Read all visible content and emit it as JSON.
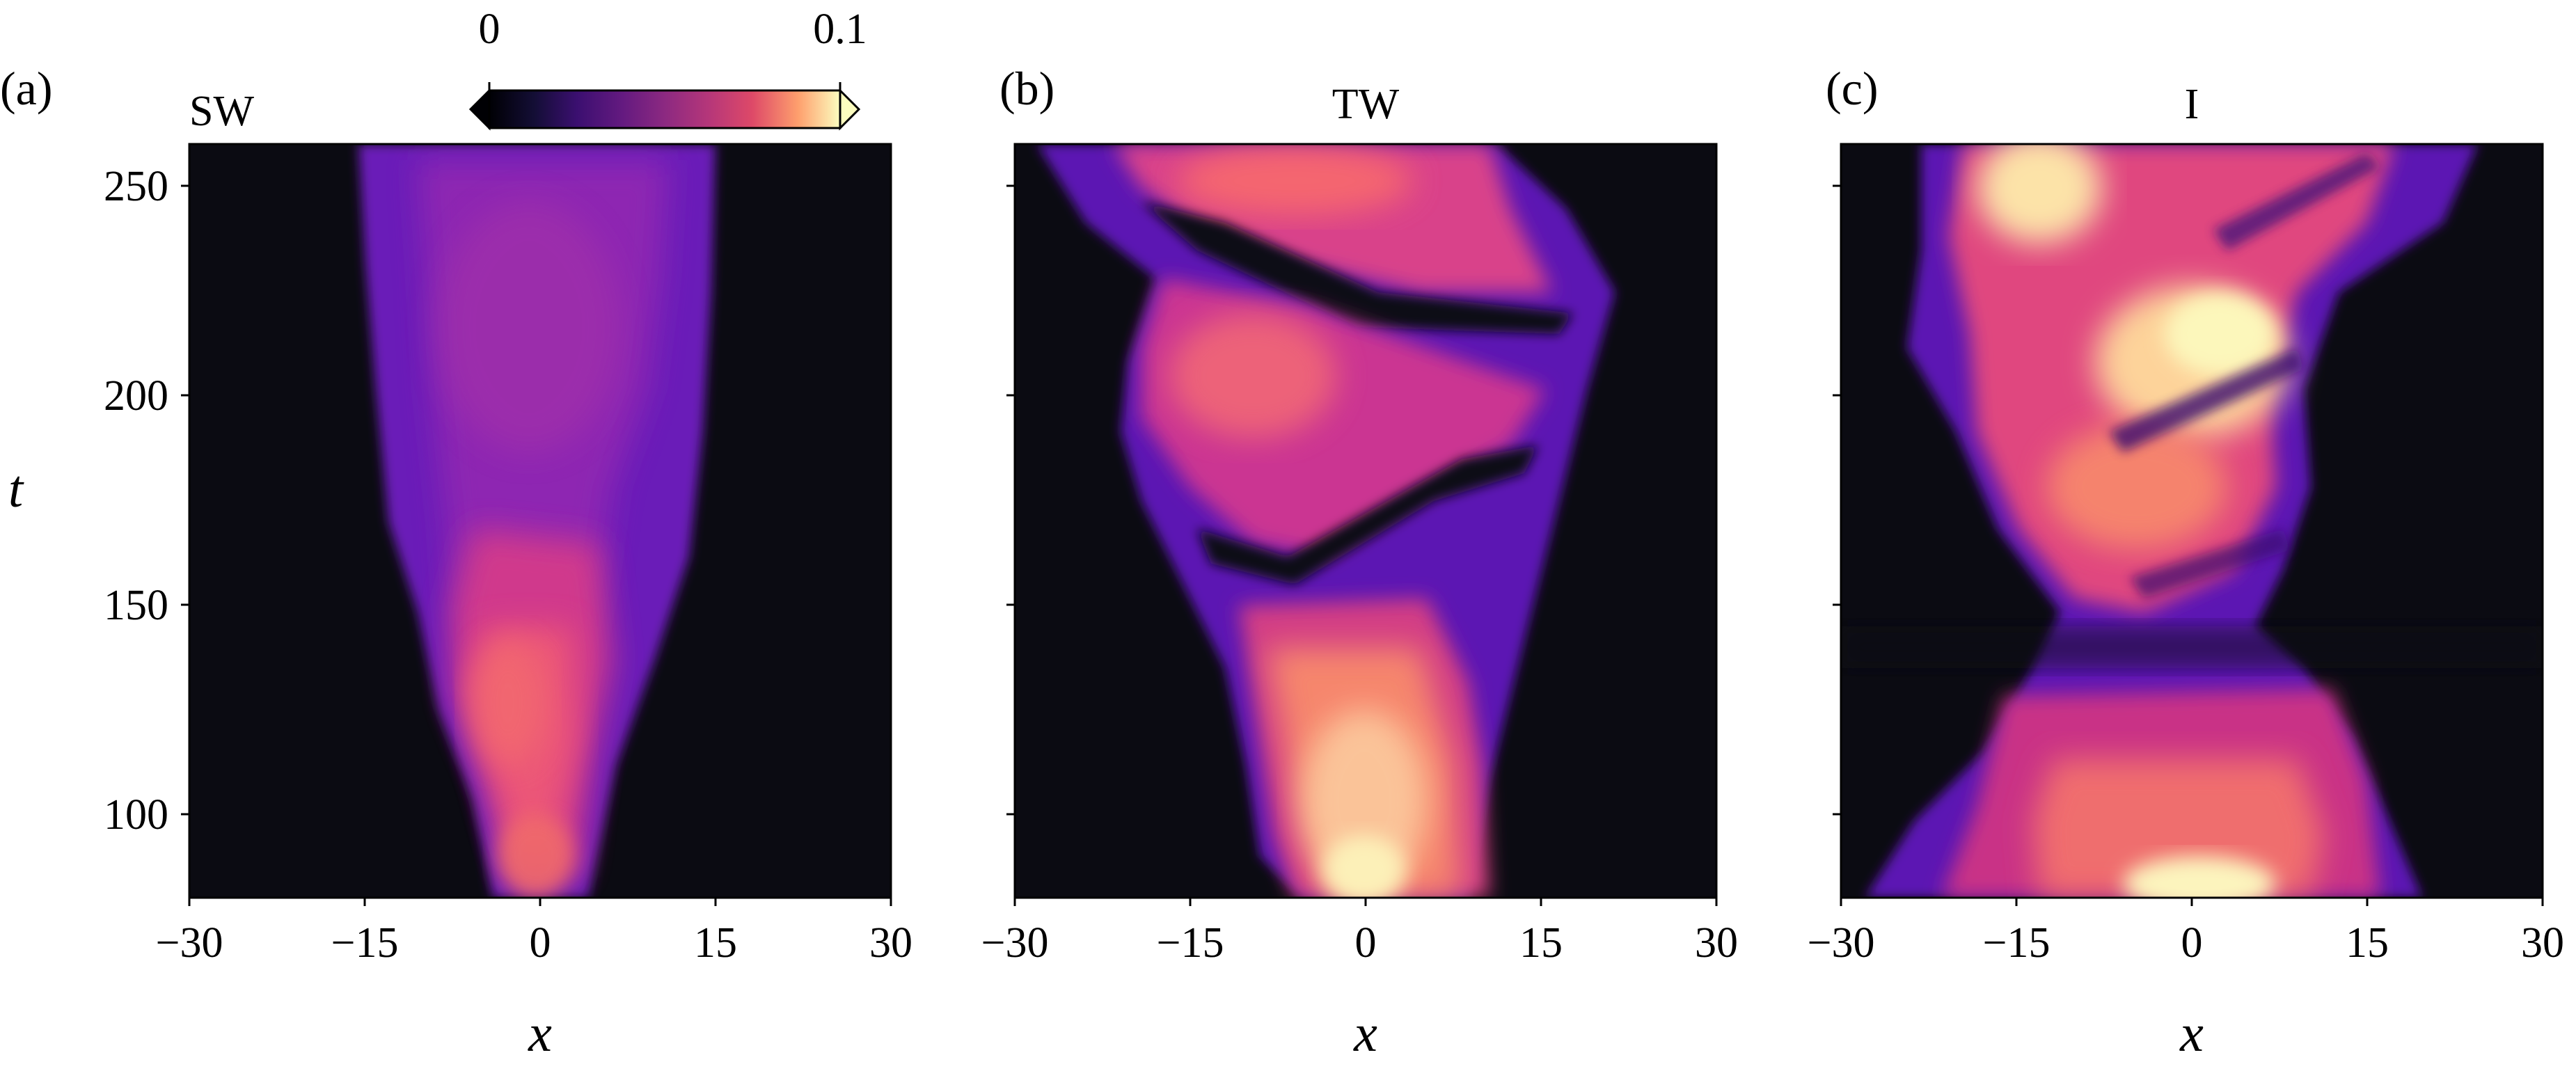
{
  "figure": {
    "panels": [
      {
        "label": "(a)",
        "title": "SW"
      },
      {
        "label": "(b)",
        "title": "TW"
      },
      {
        "label": "(c)",
        "title": "I"
      }
    ],
    "colorbar": {
      "colormap": "magma",
      "range": [
        0,
        0.1
      ],
      "ticks": [
        "0",
        "0.1"
      ],
      "extend": "both"
    }
  },
  "chart_data": [
    {
      "type": "heatmap",
      "panel": "(a)",
      "title": "SW",
      "xlabel": "x",
      "ylabel": "t",
      "xlim": [
        -30,
        30
      ],
      "ylim": [
        80,
        260
      ],
      "xticks": [
        "−30",
        "−15",
        "0",
        "15",
        "30"
      ],
      "yticks": [
        "100",
        "150",
        "200",
        "250"
      ],
      "colormap": "magma",
      "vmin": 0,
      "vmax": 0.1,
      "description_values": {
        "active_region_half_width_x": [
          [
            80,
            3
          ],
          [
            100,
            6
          ],
          [
            150,
            11
          ],
          [
            200,
            14
          ],
          [
            260,
            15
          ]
        ],
        "peak_value_near": {
          "x": -3,
          "t": 125,
          "value": 0.07
        },
        "upper_region_value": 0.04
      }
    },
    {
      "type": "heatmap",
      "panel": "(b)",
      "title": "TW",
      "xlabel": "x",
      "xlim": [
        -30,
        30
      ],
      "ylim": [
        80,
        260
      ],
      "xticks": [
        "−30",
        "−15",
        "0",
        "15",
        "30"
      ],
      "yticks": [
        "100",
        "150",
        "200",
        "250"
      ],
      "colormap": "magma",
      "vmin": 0,
      "vmax": 0.1,
      "description_values": {
        "bright_band_low": {
          "x": 0,
          "t": 95,
          "value": 0.1
        },
        "band_mid": {
          "x": -10,
          "t": 205,
          "value": 0.07
        },
        "band_top": {
          "x": -2,
          "t": 250,
          "value": 0.07
        }
      }
    },
    {
      "type": "heatmap",
      "panel": "(c)",
      "title": "I",
      "xlabel": "x",
      "xlim": [
        -30,
        30
      ],
      "ylim": [
        80,
        260
      ],
      "xticks": [
        "−30",
        "−15",
        "0",
        "15",
        "30"
      ],
      "yticks": [
        "100",
        "150",
        "200",
        "250"
      ],
      "colormap": "magma",
      "vmin": 0,
      "vmax": 0.1,
      "description_values": {
        "bright_core_top": {
          "x": -12,
          "t": 250,
          "value": 0.1
        },
        "bright_core_mid": {
          "x": -3,
          "t": 205,
          "value": 0.1
        },
        "bright_base": {
          "x": 0,
          "t": 85,
          "value": 0.1
        }
      }
    }
  ]
}
